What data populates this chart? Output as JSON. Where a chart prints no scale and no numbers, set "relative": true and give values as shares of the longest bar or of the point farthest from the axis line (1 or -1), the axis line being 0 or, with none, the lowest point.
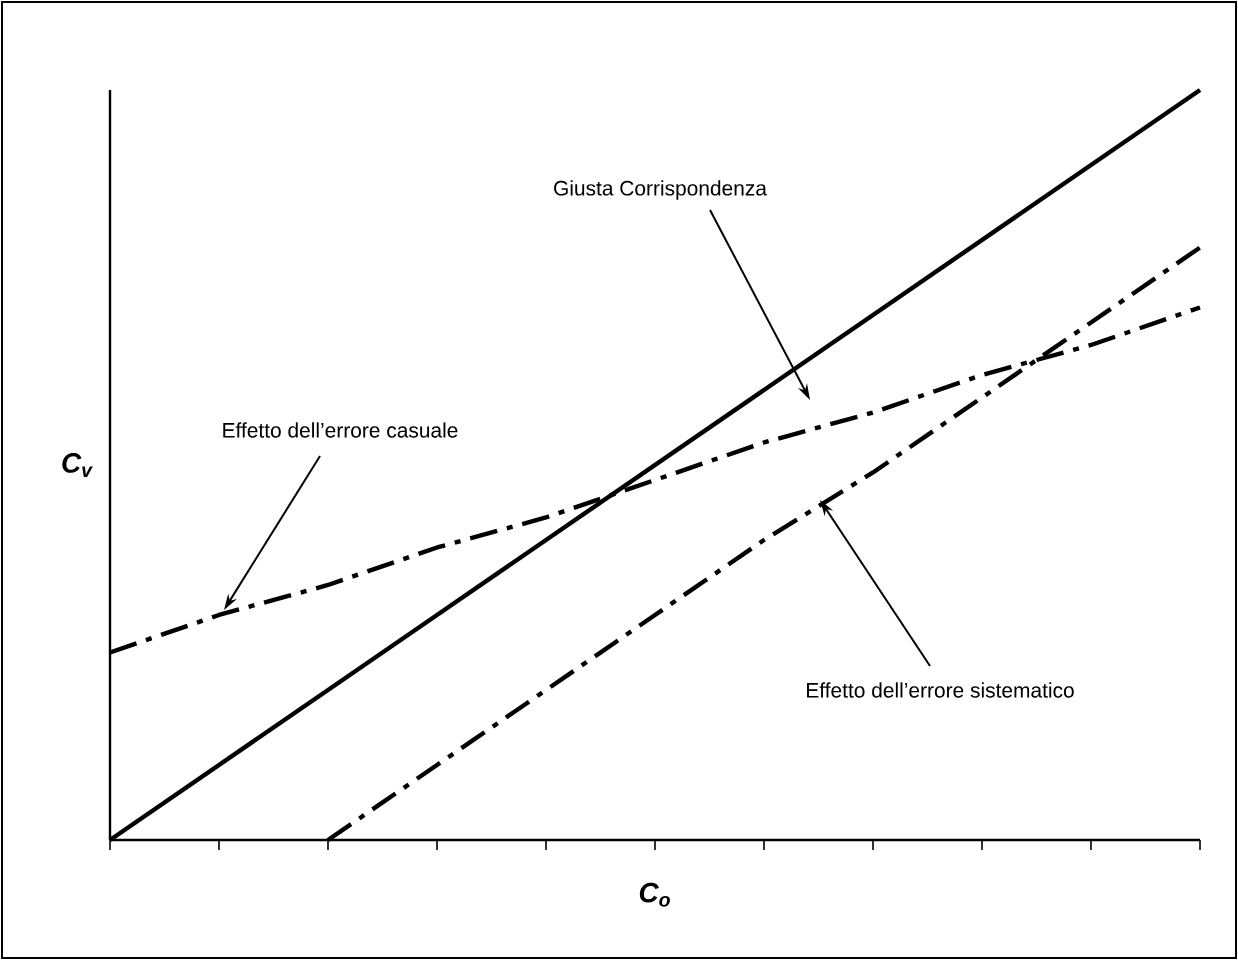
{
  "chart_data": {
    "type": "line",
    "relative": true,
    "xlabel": "C$_{o}$",
    "ylabel": "C$_{v}$",
    "categories": [
      null,
      null,
      null,
      null,
      null,
      null,
      null,
      null,
      null,
      null,
      null
    ],
    "series": [
      {
        "color": "#000000",
        "line_style": "solid",
        "values": [
          0,
          0.1,
          0.2,
          0.3,
          0.4,
          0.5,
          0.6,
          0.7,
          0.8,
          0.9,
          1.0
        ]
      },
      {
        "color": "#000000",
        "line_style": "dashdot",
        "values": [
          0.25,
          0.3,
          0.34,
          0.39,
          0.43,
          0.48,
          0.53,
          0.57,
          0.62,
          0.66,
          0.71
        ]
      },
      {
        "color": "#000000",
        "line_style": "dashdot",
        "values": [
          null,
          null,
          0,
          0.1,
          0.2,
          0.3,
          0.4,
          0.49,
          0.59,
          0.69,
          0.79
        ]
      }
    ],
    "annotations": [
      "Giusta Corrispondenza",
      "Effetto dell’errore casuale",
      "Effetto dell’errore sistematico"
    ],
    "grid": false
  }
}
